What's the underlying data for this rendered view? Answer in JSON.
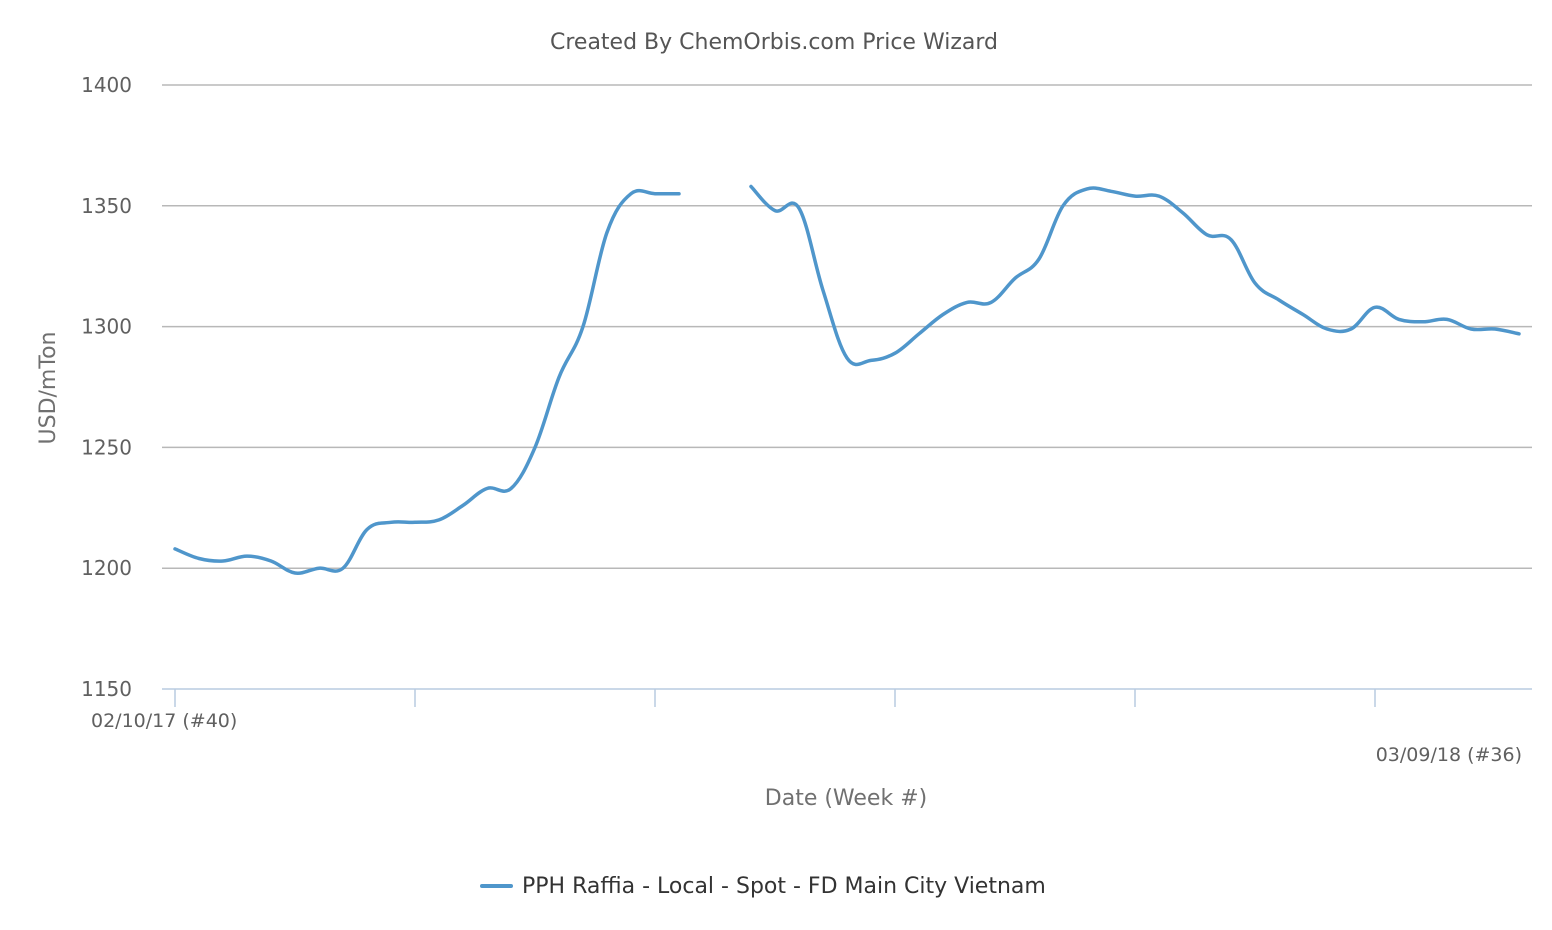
{
  "chart_data": {
    "type": "line",
    "title": "Created By ChemOrbis.com Price Wizard",
    "xlabel": "Date (Week #)",
    "ylabel": "USD/mTon",
    "ylim": [
      1150,
      1400
    ],
    "yticks": [
      "1400",
      "1350",
      "1300",
      "1250",
      "1200",
      "1150"
    ],
    "x_start_label": "02/10/17 (#40)",
    "x_end_label": "03/09/18 (#36)",
    "grid": true,
    "legend_position": "bottom-center",
    "series": [
      {
        "name": "PPH Raffia - Local - Spot - FD Main City Vietnam",
        "color": "#4f96cb",
        "values": [
          1208,
          1204,
          1203,
          1205,
          1203,
          1198,
          1200,
          1200,
          1216,
          1219,
          1219,
          1220,
          1226,
          1233,
          1233,
          1250,
          1279,
          1300,
          1339,
          1355,
          1355,
          1355,
          null,
          null,
          1358,
          1348,
          1349,
          1315,
          1287,
          1286,
          1289,
          1297,
          1305,
          1310,
          1310,
          1320,
          1328,
          1350,
          1357,
          1356,
          1354,
          1354,
          1347,
          1338,
          1336,
          1318,
          1311,
          1305,
          1299,
          1299,
          1308,
          1303,
          1302,
          1303,
          1299,
          1299,
          1297
        ]
      }
    ]
  }
}
